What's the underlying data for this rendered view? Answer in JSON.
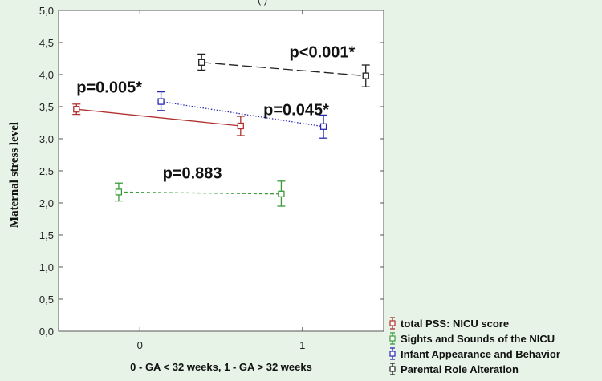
{
  "chart_data": {
    "type": "line",
    "title_fragment": "( )",
    "xlabel": "0 - GA < 32 weeks, 1 - GA > 32 weeks",
    "ylabel": "Maternal stress level",
    "xlim": [
      -0.5,
      1.5
    ],
    "ylim": [
      0,
      5
    ],
    "x_ticks": [
      {
        "value": 0,
        "label": "0"
      },
      {
        "value": 1,
        "label": "1"
      }
    ],
    "y_ticks": [
      {
        "value": 0,
        "label": "0,0"
      },
      {
        "value": 0.5,
        "label": "0,5"
      },
      {
        "value": 1,
        "label": "1,0"
      },
      {
        "value": 1.5,
        "label": "1,5"
      },
      {
        "value": 2,
        "label": "2,0"
      },
      {
        "value": 2.5,
        "label": "2,5"
      },
      {
        "value": 3,
        "label": "3,0"
      },
      {
        "value": 3.5,
        "label": "3,5"
      },
      {
        "value": 4,
        "label": "4,0"
      },
      {
        "value": 4.5,
        "label": "4,5"
      },
      {
        "value": 5,
        "label": "5,0"
      }
    ],
    "series": [
      {
        "name": "total PSS: NICU score",
        "color": "#b03030",
        "dash": "solid",
        "points": [
          {
            "x": -0.39,
            "y": 3.46,
            "lo": 3.38,
            "hi": 3.54
          },
          {
            "x": 0.62,
            "y": 3.2,
            "lo": 3.05,
            "hi": 3.35
          }
        ]
      },
      {
        "name": "Sights and Sounds of the NICU",
        "color": "#3a9a3a",
        "dash": "dashed",
        "points": [
          {
            "x": -0.13,
            "y": 2.17,
            "lo": 2.03,
            "hi": 2.31
          },
          {
            "x": 0.87,
            "y": 2.14,
            "lo": 1.95,
            "hi": 2.34
          }
        ]
      },
      {
        "name": "Infant Appearance and Behavior",
        "color": "#2a2ab0",
        "dash": "dotted",
        "points": [
          {
            "x": 0.13,
            "y": 3.58,
            "lo": 3.44,
            "hi": 3.73
          },
          {
            "x": 1.13,
            "y": 3.19,
            "lo": 3.01,
            "hi": 3.37
          }
        ]
      },
      {
        "name": "Parental Role Alteration",
        "color": "#222222",
        "dash": "longdash",
        "points": [
          {
            "x": 0.38,
            "y": 4.19,
            "lo": 4.07,
            "hi": 4.32
          },
          {
            "x": 1.39,
            "y": 3.98,
            "lo": 3.81,
            "hi": 4.15
          }
        ]
      }
    ],
    "annotations": [
      {
        "text": "p=0.005*",
        "x": -0.39,
        "y": 3.72
      },
      {
        "text": "p=0.883",
        "x": 0.14,
        "y": 2.38
      },
      {
        "text": "p=0.045*",
        "x": 0.76,
        "y": 3.37
      },
      {
        "text": "p<0.001*",
        "x": 0.92,
        "y": 4.27
      }
    ],
    "legend_position": "bottom-right"
  }
}
